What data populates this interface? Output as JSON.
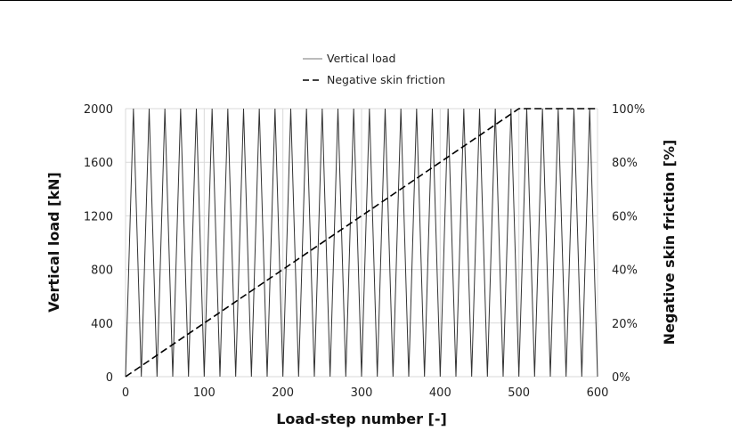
{
  "chart_data": {
    "type": "line",
    "xlabel": "Load-step number [-]",
    "ylabel": "Vertical load [kN]",
    "y2label": "Negative skin friction [%]",
    "xlim": [
      0,
      600
    ],
    "ylim": [
      0,
      2000
    ],
    "y2lim": [
      0,
      100
    ],
    "x_ticks": [
      "0",
      "100",
      "200",
      "300",
      "400",
      "500",
      "600"
    ],
    "y_ticks": [
      "0",
      "400",
      "800",
      "1200",
      "1600",
      "2000"
    ],
    "y2_ticks": [
      "0%",
      "20%",
      "40%",
      "60%",
      "80%",
      "100%"
    ],
    "grid": true,
    "legend_position": "top-center",
    "series": [
      {
        "name": "Vertical load",
        "axis": "left",
        "style": "solid",
        "color": "#333333",
        "x": [
          0,
          10,
          20,
          30,
          40,
          50,
          60,
          70,
          80,
          90,
          100,
          110,
          120,
          130,
          140,
          150,
          160,
          170,
          180,
          190,
          200,
          210,
          220,
          230,
          240,
          250,
          260,
          270,
          280,
          290,
          300,
          310,
          320,
          330,
          340,
          350,
          360,
          370,
          380,
          390,
          400,
          410,
          420,
          430,
          440,
          450,
          460,
          470,
          480,
          490,
          500,
          510,
          520,
          530,
          540,
          550,
          560,
          570,
          580,
          590,
          600
        ],
        "y": [
          0,
          2000,
          0,
          2000,
          0,
          2000,
          0,
          2000,
          0,
          2000,
          0,
          2000,
          0,
          2000,
          0,
          2000,
          0,
          2000,
          0,
          2000,
          0,
          2000,
          0,
          2000,
          0,
          2000,
          0,
          2000,
          0,
          2000,
          0,
          2000,
          0,
          2000,
          0,
          2000,
          0,
          2000,
          0,
          2000,
          0,
          2000,
          0,
          2000,
          0,
          2000,
          0,
          2000,
          0,
          2000,
          0,
          2000,
          0,
          2000,
          0,
          2000,
          0,
          2000,
          0,
          2000,
          0
        ]
      },
      {
        "name": "Negative skin friction",
        "axis": "right",
        "style": "dashed",
        "color": "#000000",
        "x": [
          0,
          500,
          600
        ],
        "y": [
          0,
          100,
          100
        ]
      }
    ]
  }
}
